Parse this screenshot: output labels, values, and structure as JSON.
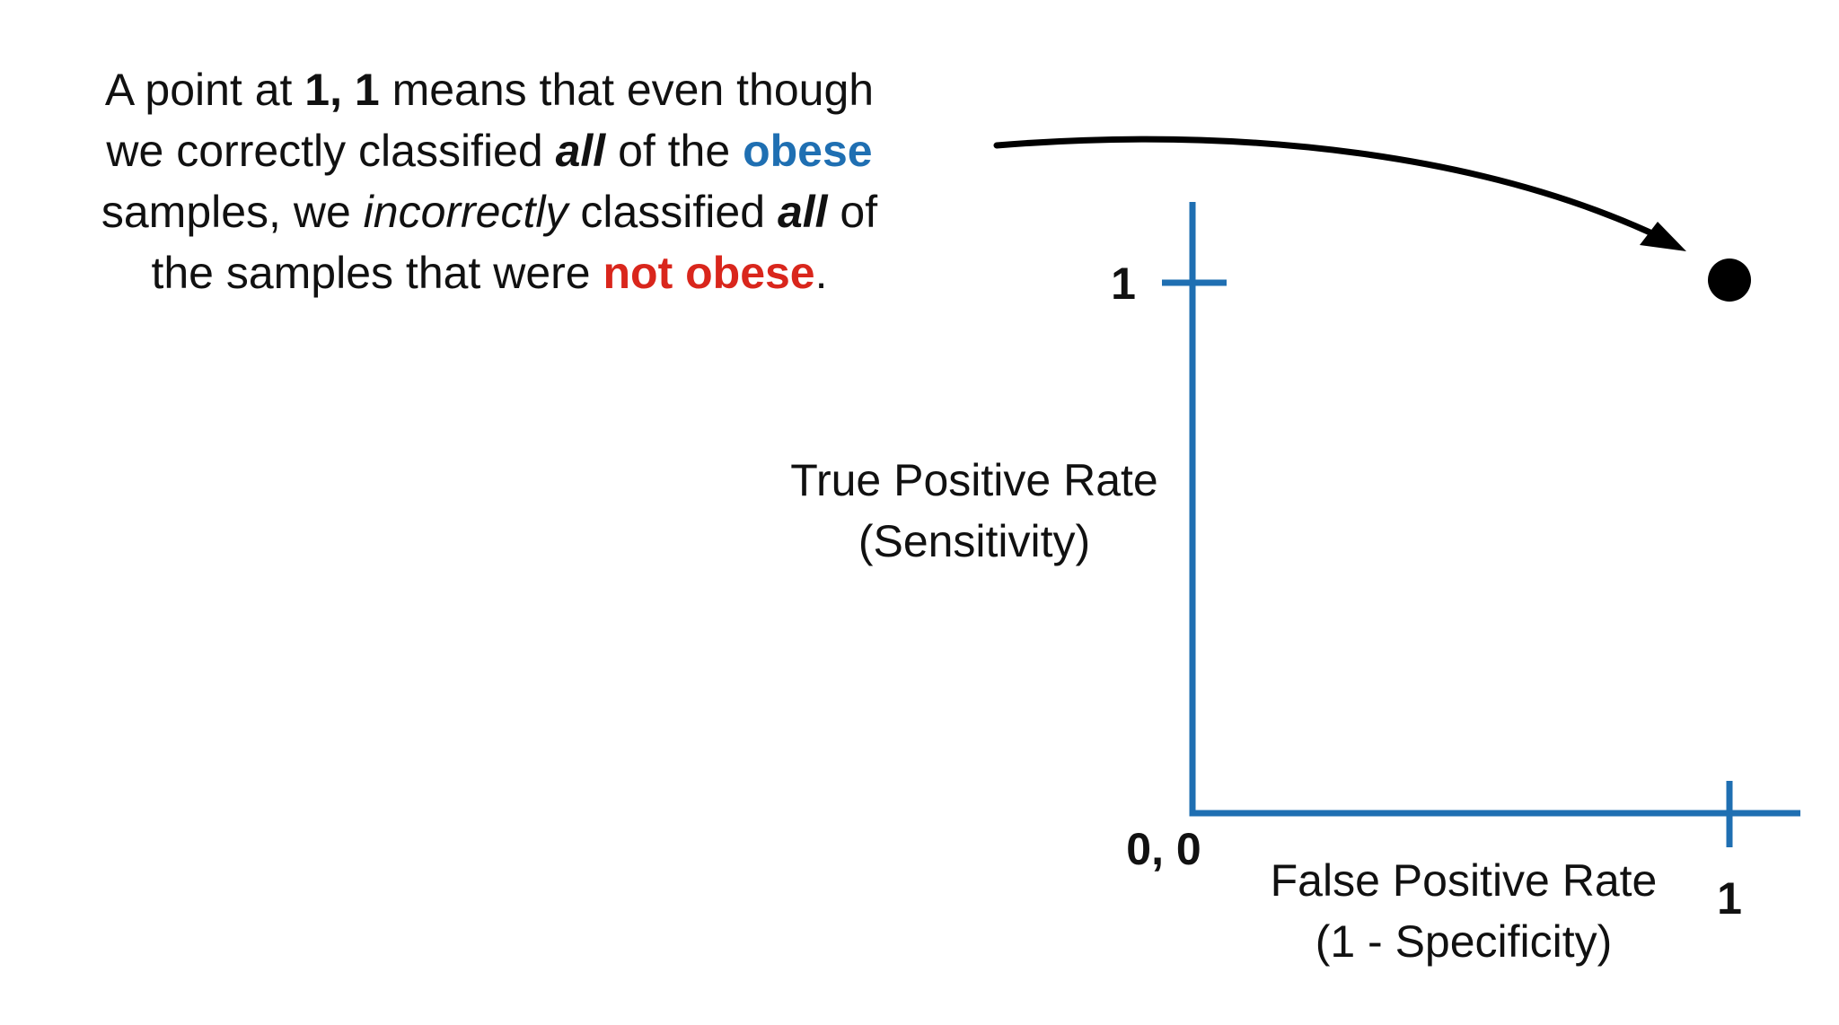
{
  "explanation": {
    "line1": {
      "a": "A point at ",
      "b": "1, 1",
      "c": " means that even though"
    },
    "line2": {
      "a": "we correctly classified ",
      "b": "all",
      "c": " of the ",
      "d": "obese"
    },
    "line3": {
      "a": "samples, we ",
      "b": "incorrectly",
      "c": " classified ",
      "d": "all",
      "e": " of"
    },
    "line4": {
      "a": "the samples that were ",
      "b": "not obese",
      "c": "."
    }
  },
  "colors": {
    "axis": "#1f6fb2",
    "point": "#000000",
    "arrow": "#000000",
    "obese": "#1f6fb2",
    "not_obese": "#d9261c"
  },
  "chart_data": {
    "type": "scatter",
    "points": [
      {
        "x": 1,
        "y": 1
      }
    ],
    "xlabel": "False Positive Rate",
    "xlabel_sub": "(1 - Specificity)",
    "ylabel": "True Positive Rate",
    "ylabel_sub": "(Sensitivity)",
    "origin_label": "0, 0",
    "x_tick_label": "1",
    "y_tick_label": "1",
    "xlim": [
      0,
      1
    ],
    "ylim": [
      0,
      1
    ],
    "grid": false,
    "annotation": "arrow from explanation text to point (1, 1)"
  }
}
